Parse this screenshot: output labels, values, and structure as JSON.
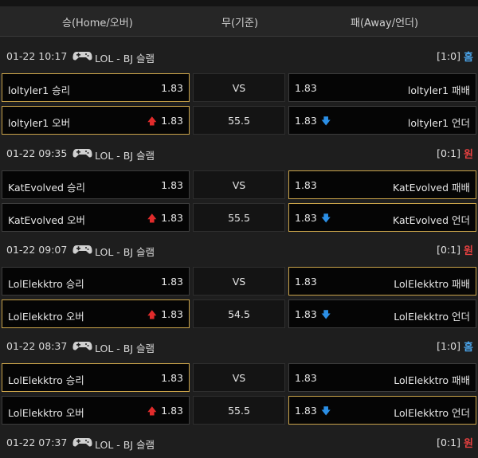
{
  "header": {
    "home": "승(Home/오버)",
    "draw": "무(기준)",
    "away": "패(Away/언더)"
  },
  "games": [
    {
      "time": "01-22 10:17",
      "league": "LOL - BJ 슬램",
      "score": "[1:0]",
      "result": "홈",
      "result_type": "home",
      "rows": [
        {
          "home_label": "loltyler1 승리",
          "home_odds": "1.83",
          "home_arrow": "",
          "home_selected": true,
          "draw": "VS",
          "away_odds": "1.83",
          "away_arrow": "",
          "away_label": "loltyler1 패배",
          "away_selected": false
        },
        {
          "home_label": "loltyler1 오버",
          "home_odds": "1.83",
          "home_arrow": "up",
          "home_selected": true,
          "draw": "55.5",
          "away_odds": "1.83",
          "away_arrow": "down",
          "away_label": "loltyler1 언더",
          "away_selected": false
        }
      ]
    },
    {
      "time": "01-22 09:35",
      "league": "LOL - BJ 슬램",
      "score": "[0:1]",
      "result": "원",
      "result_type": "away",
      "rows": [
        {
          "home_label": "KatEvolved 승리",
          "home_odds": "1.83",
          "home_arrow": "",
          "home_selected": false,
          "draw": "VS",
          "away_odds": "1.83",
          "away_arrow": "",
          "away_label": "KatEvolved 패배",
          "away_selected": true
        },
        {
          "home_label": "KatEvolved 오버",
          "home_odds": "1.83",
          "home_arrow": "up",
          "home_selected": false,
          "draw": "55.5",
          "away_odds": "1.83",
          "away_arrow": "down",
          "away_label": "KatEvolved 언더",
          "away_selected": true
        }
      ]
    },
    {
      "time": "01-22 09:07",
      "league": "LOL - BJ 슬램",
      "score": "[0:1]",
      "result": "원",
      "result_type": "away",
      "rows": [
        {
          "home_label": "LolElekktro 승리",
          "home_odds": "1.83",
          "home_arrow": "",
          "home_selected": false,
          "draw": "VS",
          "away_odds": "1.83",
          "away_arrow": "",
          "away_label": "LolElekktro 패배",
          "away_selected": true
        },
        {
          "home_label": "LolElekktro 오버",
          "home_odds": "1.83",
          "home_arrow": "up",
          "home_selected": true,
          "draw": "54.5",
          "away_odds": "1.83",
          "away_arrow": "down",
          "away_label": "LolElekktro 언더",
          "away_selected": false
        }
      ]
    },
    {
      "time": "01-22 08:37",
      "league": "LOL - BJ 슬램",
      "score": "[1:0]",
      "result": "홈",
      "result_type": "home",
      "rows": [
        {
          "home_label": "LolElekktro 승리",
          "home_odds": "1.83",
          "home_arrow": "",
          "home_selected": true,
          "draw": "VS",
          "away_odds": "1.83",
          "away_arrow": "",
          "away_label": "LolElekktro 패배",
          "away_selected": false
        },
        {
          "home_label": "LolElekktro 오버",
          "home_odds": "1.83",
          "home_arrow": "up",
          "home_selected": false,
          "draw": "55.5",
          "away_odds": "1.83",
          "away_arrow": "down",
          "away_label": "LolElekktro 언더",
          "away_selected": true
        }
      ]
    },
    {
      "time": "01-22 07:37",
      "league": "LOL - BJ 슬램",
      "score": "[0:1]",
      "result": "원",
      "result_type": "away",
      "rows": []
    }
  ],
  "icons": {
    "game": "gamepad-icon",
    "up": "arrow-up-icon",
    "down": "arrow-down-icon"
  },
  "colors": {
    "home_result": "#4aa3e8",
    "away_result": "#e64040",
    "selected_border": "#c9a34a",
    "arrow_up": "#e12b2b",
    "arrow_down": "#2b8fe6"
  }
}
